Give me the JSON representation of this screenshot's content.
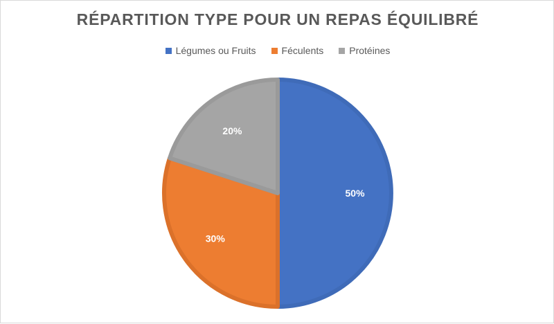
{
  "chart_data": {
    "type": "pie",
    "title": "RÉPARTITION TYPE POUR UN REPAS ÉQUILIBRÉ",
    "categories": [
      "Légumes ou Fruits",
      "Féculents",
      "Protéines"
    ],
    "values": [
      50,
      30,
      20
    ],
    "data_labels": [
      "50%",
      "30%",
      "20%"
    ],
    "colors": [
      "#4472C4",
      "#ED7D31",
      "#A5A5A5"
    ],
    "legend_position": "top",
    "start_angle": "12 o'clock, clockwise"
  }
}
